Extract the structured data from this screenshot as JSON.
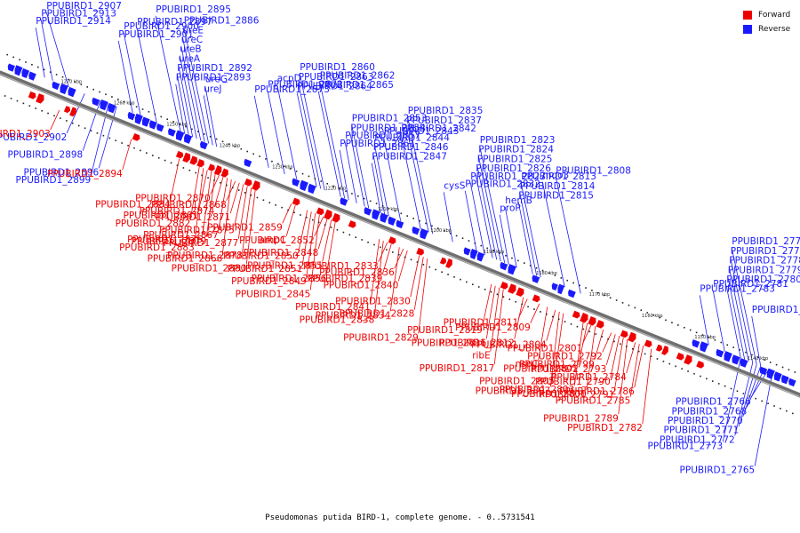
{
  "caption": "Pseudomonas putida BIRD-1, complete genome. - 0..5731541",
  "legend": {
    "forward_label": "Forward",
    "reverse_label": "Reverse",
    "forward_color": "#ee0000",
    "reverse_color": "#1a1aff"
  },
  "colors": {
    "backbone": "#6f6f6f",
    "forward": "#ee0000",
    "reverse": "#1a1aff"
  },
  "kbp_ticks": [
    "1270 kbp",
    "1260 kbp",
    "1250 kbp",
    "1240 kbp",
    "1230 kbp",
    "1220 kbp",
    "1210 kbp",
    "1200 kbp",
    "1190 kbp",
    "1180 kbp",
    "1170 kbp",
    "1160 kbp",
    "1150 kbp",
    "1140 kbp",
    "1130 kbp"
  ],
  "reverse_labels": [
    {
      "text": "PPUBIRD1_2914",
      "pt": [
        0.05,
        1
      ]
    },
    {
      "text": "PPUBIRD1_2913",
      "pt": [
        0.06,
        1
      ]
    },
    {
      "text": "PPUBIRD1_2901",
      "pt": [
        0.16,
        1
      ]
    },
    {
      "text": "PPUBIRD1_2900",
      "pt": [
        0.17,
        1
      ]
    },
    {
      "text": "PPUBIRD1_2897",
      "pt": [
        0.19,
        1
      ]
    },
    {
      "text": "PPUBIRD1_2907",
      "pt": [
        0.08,
        1
      ]
    },
    {
      "text": "PPUBIRD1_2895",
      "pt": [
        0.22,
        1
      ]
    },
    {
      "text": "PPUBIRD1_2893",
      "pt": [
        0.225,
        1
      ]
    },
    {
      "text": "PPUBIRD1_2892",
      "pt": [
        0.23,
        1
      ]
    },
    {
      "text": "ureA",
      "pt": [
        0.235,
        1
      ]
    },
    {
      "text": "ureB",
      "pt": [
        0.24,
        1
      ]
    },
    {
      "text": "ureC",
      "pt": [
        0.245,
        1
      ]
    },
    {
      "text": "ureE",
      "pt": [
        0.25,
        1
      ]
    },
    {
      "text": "PPUBIRD1_2886",
      "pt": [
        0.255,
        1
      ]
    },
    {
      "text": "ureJ",
      "pt": [
        0.26,
        1
      ]
    },
    {
      "text": "ureG",
      "pt": [
        0.265,
        1
      ]
    },
    {
      "text": "PPUBIRD1_2873",
      "pt": [
        0.33,
        1
      ]
    },
    {
      "text": "PPUBIRD1_2872",
      "pt": [
        0.35,
        1
      ]
    },
    {
      "text": "acpD",
      "pt": [
        0.365,
        1
      ]
    },
    {
      "text": "PPUBIRD1_2865",
      "pt": [
        0.42,
        1
      ]
    },
    {
      "text": "PPUBIRD1_2862",
      "pt": [
        0.425,
        1
      ]
    },
    {
      "text": "PPUBIRD1_2861",
      "pt": [
        0.43,
        1
      ]
    },
    {
      "text": "PPUBIRD1_2857",
      "pt": [
        0.44,
        1
      ]
    },
    {
      "text": "PPUBIRD1_2854",
      "pt": [
        0.45,
        1
      ]
    },
    {
      "text": "PPUBIRD1_2853",
      "pt": [
        0.455,
        1
      ]
    },
    {
      "text": "PPUBIRD1_2864",
      "pt": [
        0.39,
        1
      ]
    },
    {
      "text": "PPUBIRD1_2863",
      "pt": [
        0.395,
        1
      ]
    },
    {
      "text": "PPUBIRD1_2860",
      "pt": [
        0.4,
        1
      ]
    },
    {
      "text": "PPUBIRD1_2847",
      "pt": [
        0.47,
        1
      ]
    },
    {
      "text": "PPUBIRD1_2846",
      "pt": [
        0.475,
        1
      ]
    },
    {
      "text": "PPUBIRD1_2844",
      "pt": [
        0.48,
        1
      ]
    },
    {
      "text": "PPUBIRD1_2843",
      "pt": [
        0.495,
        1
      ]
    },
    {
      "text": "PPUBIRD1_2842",
      "pt": [
        0.52,
        1
      ]
    },
    {
      "text": "PPUBIRD1_2837",
      "pt": [
        0.53,
        1
      ]
    },
    {
      "text": "PPUBIRD1_2835",
      "pt": [
        0.535,
        1
      ]
    },
    {
      "text": "cysS",
      "pt": [
        0.56,
        1
      ]
    },
    {
      "text": "PPUBIRD1_2832",
      "pt": [
        0.59,
        1
      ]
    },
    {
      "text": "PPUBIRD1_2827",
      "pt": [
        0.6,
        1
      ]
    },
    {
      "text": "PPUBIRD1_2826",
      "pt": [
        0.61,
        1
      ]
    },
    {
      "text": "PPUBIRD1_2825",
      "pt": [
        0.615,
        1
      ]
    },
    {
      "text": "PPUBIRD1_2824",
      "pt": [
        0.62,
        1
      ]
    },
    {
      "text": "PPUBIRD1_2823",
      "pt": [
        0.625,
        1
      ]
    },
    {
      "text": "proP",
      "pt": [
        0.63,
        1
      ]
    },
    {
      "text": "hemB",
      "pt": [
        0.64,
        1
      ]
    },
    {
      "text": "PPUBIRD1_2815",
      "pt": [
        0.66,
        1
      ]
    },
    {
      "text": "PPUBIRD1_2814",
      "pt": [
        0.665,
        1
      ]
    },
    {
      "text": "PPUBIRD1_2813",
      "pt": [
        0.67,
        1
      ]
    },
    {
      "text": "mqo3",
      "pt": [
        0.7,
        1
      ]
    },
    {
      "text": "PPUBIRD1_2808",
      "pt": [
        0.72,
        1
      ]
    },
    {
      "text": "PPUBIRD1_2783",
      "pt": [
        0.88,
        1
      ]
    },
    {
      "text": "PPUBIRD1_2781",
      "pt": [
        0.9,
        1
      ]
    },
    {
      "text": "PPUBIRD1_2780",
      "pt": [
        0.92,
        1
      ]
    },
    {
      "text": "PPUBIRD1_2779",
      "pt": [
        0.925,
        1
      ]
    },
    {
      "text": "PPUBIRD1_2778",
      "pt": [
        0.93,
        1
      ]
    },
    {
      "text": "PPUBIRD1_2777",
      "pt": [
        0.935,
        1
      ]
    },
    {
      "text": "PPUBIRD1_2775",
      "pt": [
        0.94,
        1
      ]
    },
    {
      "text": "PPUBIRD1_2774",
      "pt": [
        0.945,
        1
      ]
    },
    {
      "text": "PPUBIRD1_2902",
      "pt": [
        0.1,
        -1
      ]
    },
    {
      "text": "PPUBIRD1_2898",
      "pt": [
        0.12,
        -1
      ]
    },
    {
      "text": "PPUBIRD1_2896",
      "pt": [
        0.14,
        -1
      ]
    },
    {
      "text": "PPUBIRD1_2899",
      "pt": [
        0.13,
        -1
      ]
    },
    {
      "text": "PPUBIRD1_2773",
      "pt": [
        0.92,
        -1
      ]
    },
    {
      "text": "PPUBIRD1_2765",
      "pt": [
        0.96,
        -1
      ]
    },
    {
      "text": "PPUBIRD1_2766",
      "pt": [
        0.955,
        -1
      ]
    },
    {
      "text": "PPUBIRD1_2768",
      "pt": [
        0.95,
        -1
      ]
    },
    {
      "text": "PPUBIRD1_2770",
      "pt": [
        0.945,
        -1
      ]
    },
    {
      "text": "PPUBIRD1_2771",
      "pt": [
        0.94,
        -1
      ]
    },
    {
      "text": "PPUBIRD1_2772",
      "pt": [
        0.935,
        -1
      ]
    }
  ],
  "forward_labels": [
    {
      "text": "PPUBIRD1_2903",
      "pt": [
        0.08,
        1
      ]
    },
    {
      "text": "PPUBIRD1_2894",
      "pt": [
        0.17,
        1
      ]
    },
    {
      "text": "PPUBIRD1_2884",
      "pt": [
        0.23,
        1
      ]
    },
    {
      "text": "PPUBIRD1_2882",
      "pt": [
        0.255,
        1
      ]
    },
    {
      "text": "PPUBIRD1_2876",
      "pt": [
        0.27,
        1
      ]
    },
    {
      "text": "PPUBIRD1_2883",
      "pt": [
        0.26,
        1
      ]
    },
    {
      "text": "PPUBIRD1_2870",
      "pt": [
        0.28,
        1
      ]
    },
    {
      "text": "PPUBIRD1_2874",
      "pt": [
        0.285,
        1
      ]
    },
    {
      "text": "PPUBIRD1_2881",
      "pt": [
        0.265,
        1
      ]
    },
    {
      "text": "PPUBIRD1_2867",
      "pt": [
        0.29,
        1
      ]
    },
    {
      "text": "PPUBIRD1_2879",
      "pt": [
        0.275,
        1
      ]
    },
    {
      "text": "PPUBIRD1_2866",
      "pt": [
        0.295,
        1
      ]
    },
    {
      "text": "PPUBIRD1_2868",
      "pt": [
        0.3,
        1
      ]
    },
    {
      "text": "PPUBIRD1_2871",
      "pt": [
        0.305,
        1
      ]
    },
    {
      "text": "PPUBIRD1_2875",
      "pt": [
        0.31,
        1
      ]
    },
    {
      "text": "PPUBIRD1_2877",
      "pt": [
        0.315,
        1
      ]
    },
    {
      "text": "PPUBIRD1_2878",
      "pt": [
        0.32,
        1
      ]
    },
    {
      "text": "PPUBIRD1_2880",
      "pt": [
        0.325,
        1
      ]
    },
    {
      "text": "PPUBIRD1_2859",
      "pt": [
        0.37,
        1
      ]
    },
    {
      "text": "ampC",
      "pt": [
        0.375,
        1
      ]
    },
    {
      "text": "PPUBIRD1_2850",
      "pt": [
        0.39,
        1
      ]
    },
    {
      "text": "PPUBIRD1_2851",
      "pt": [
        0.395,
        1
      ]
    },
    {
      "text": "PPUBIRD1_2849",
      "pt": [
        0.4,
        1
      ]
    },
    {
      "text": "PPUBIRD1_2845",
      "pt": [
        0.405,
        1
      ]
    },
    {
      "text": "PPUBIRD1_2852",
      "pt": [
        0.41,
        1
      ]
    },
    {
      "text": "PPUBIRD1_2848",
      "pt": [
        0.415,
        1
      ]
    },
    {
      "text": "PPUBIRD1_2855",
      "pt": [
        0.42,
        1
      ]
    },
    {
      "text": "PPUBIRD1_2856",
      "pt": [
        0.425,
        1
      ]
    },
    {
      "text": "PPUBIRD1_2841",
      "pt": [
        0.48,
        1
      ]
    },
    {
      "text": "PPUBIRD1_2838",
      "pt": [
        0.485,
        1
      ]
    },
    {
      "text": "PPUBIRD1_2833",
      "pt": [
        0.49,
        1
      ]
    },
    {
      "text": "PPUBIRD1_2839",
      "pt": [
        0.495,
        1
      ]
    },
    {
      "text": "PPUBIRD1_2830",
      "pt": [
        0.53,
        1
      ]
    },
    {
      "text": "PPUBIRD1_2828",
      "pt": [
        0.535,
        1
      ]
    },
    {
      "text": "PPUBIRD1_2834",
      "pt": [
        0.505,
        1
      ]
    },
    {
      "text": "PPUBIRD1_2829",
      "pt": [
        0.54,
        1
      ]
    },
    {
      "text": "PPUBIRD1_2836",
      "pt": [
        0.51,
        1
      ]
    },
    {
      "text": "PPUBIRD1_2840",
      "pt": [
        0.515,
        1
      ]
    },
    {
      "text": "PPUBIRD1_2819",
      "pt": [
        0.62,
        1
      ]
    },
    {
      "text": "PPUBIRD1_2816",
      "pt": [
        0.625,
        1
      ]
    },
    {
      "text": "ribE",
      "pt": [
        0.63,
        1
      ]
    },
    {
      "text": "PPUBIRD1_2817",
      "pt": [
        0.635,
        1
      ]
    },
    {
      "text": "PPUBIRD1_2809",
      "pt": [
        0.68,
        1
      ]
    },
    {
      "text": "PPUBIRD1_2804",
      "pt": [
        0.7,
        1
      ]
    },
    {
      "text": "PPUBIRD1_2812",
      "pt": [
        0.66,
        1
      ]
    },
    {
      "text": "nspC",
      "pt": [
        0.69,
        1
      ]
    },
    {
      "text": "PPUBIRD1_2805",
      "pt": [
        0.71,
        1
      ]
    },
    {
      "text": "PPUBIRD1_2807",
      "pt": [
        0.705,
        1
      ]
    },
    {
      "text": "PPUBIRD1_2811",
      "pt": [
        0.665,
        1
      ]
    },
    {
      "text": "PPUBIRD1_2799",
      "pt": [
        0.76,
        1
      ]
    },
    {
      "text": "PPUBIRD1_2790",
      "pt": [
        0.78,
        1
      ]
    },
    {
      "text": "PPUBIRD1_2791",
      "pt": [
        0.785,
        1
      ]
    },
    {
      "text": "PPUBIRD1_2800",
      "pt": [
        0.75,
        1
      ]
    },
    {
      "text": "PPUBIRD1_2782",
      "pt": [
        0.82,
        1
      ]
    },
    {
      "text": "PPUBIRD1_2801",
      "pt": [
        0.745,
        1
      ]
    },
    {
      "text": "PPUBIRD1_2784",
      "pt": [
        0.8,
        1
      ]
    },
    {
      "text": "PPUBIRD1_2802",
      "pt": [
        0.74,
        1
      ]
    },
    {
      "text": "PPUBIRD1_2785",
      "pt": [
        0.805,
        1
      ]
    },
    {
      "text": "PPUBIRD1_2803",
      "pt": [
        0.735,
        1
      ]
    },
    {
      "text": "PPUBIRD1_2789",
      "pt": [
        0.79,
        1
      ]
    },
    {
      "text": "PPUBIRD1_2792",
      "pt": [
        0.77,
        1
      ]
    },
    {
      "text": "PPUBIRD1_2793",
      "pt": [
        0.775,
        1
      ]
    },
    {
      "text": "PPUBIRD1_2786",
      "pt": [
        0.81,
        1
      ]
    }
  ]
}
